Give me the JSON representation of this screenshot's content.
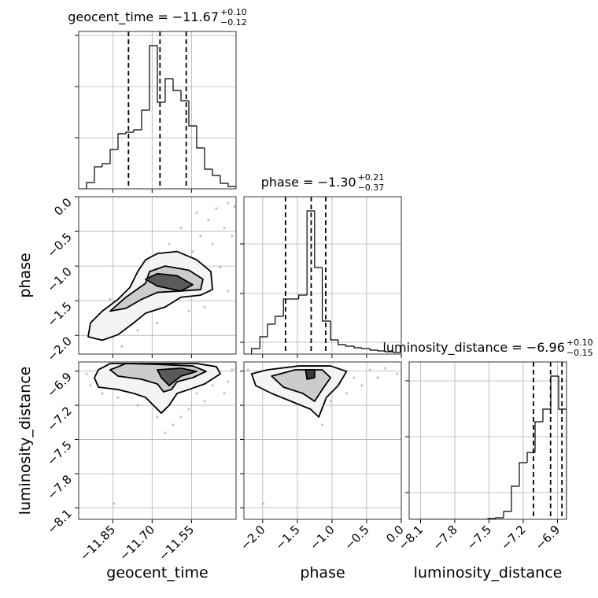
{
  "chart_data": [
    {
      "type": "histogram",
      "title": "geocent_time = −11.67",
      "title_sup": "+0.10",
      "title_sub": "−0.12",
      "bins": [
        -11.98,
        -11.95,
        -11.92,
        -11.89,
        -11.86,
        -11.83,
        -11.8,
        -11.77,
        -11.74,
        -11.71,
        -11.68,
        -11.65,
        -11.62,
        -11.59,
        -11.56,
        -11.53,
        -11.5,
        -11.47,
        -11.44,
        -11.41,
        -11.38
      ],
      "counts": [
        0,
        8,
        28,
        32,
        50,
        70,
        72,
        75,
        100,
        182,
        110,
        140,
        125,
        112,
        80,
        52,
        25,
        17,
        7,
        3
      ],
      "quantiles": [
        -11.79,
        -11.67,
        -11.57
      ],
      "color": "#000000",
      "xlim": [
        -11.98,
        -11.38
      ],
      "ylim": [
        0,
        200
      ],
      "xticks": [
        -11.85,
        -11.7,
        -11.55
      ],
      "yticks": [
        65,
        130,
        195
      ],
      "show_xtick_labels": false,
      "show_ytick_labels": false,
      "grid": true
    },
    {
      "type": "scatter",
      "ylabel": "phase",
      "x": [
        -11.92,
        -11.875,
        -11.83,
        -11.785,
        -11.74,
        -11.695,
        -11.65,
        -11.59,
        -11.545,
        -11.515,
        -11.485,
        -11.455,
        -11.41,
        -11.386,
        -11.425,
        -11.47,
        -11.44,
        -11.41,
        -11.5,
        -11.56,
        -11.68,
        -11.755,
        -11.815,
        -11.59,
        -11.635,
        -11.53,
        -11.86,
        -11.395
      ],
      "y": [
        -1.93,
        -1.82,
        -1.7,
        -1.59,
        -1.42,
        -1.25,
        -1.14,
        -0.96,
        -0.79,
        -0.57,
        -0.34,
        -0.17,
        -0.09,
        -0.14,
        -0.45,
        -0.68,
        -1.02,
        -1.36,
        -1.59,
        -1.65,
        -1.82,
        -1.93,
        -2.16,
        -0.45,
        -0.68,
        -0.23,
        -1.48,
        -0.57
      ],
      "color": "#808080",
      "contours": [
        {
          "fill": "#f4f4f4",
          "x": [
            -11.944,
            -11.935,
            -11.89,
            -11.83,
            -11.785,
            -11.755,
            -11.725,
            -11.68,
            -11.605,
            -11.53,
            -11.476,
            -11.47,
            -11.515,
            -11.59,
            -11.65,
            -11.725,
            -11.77,
            -11.83,
            -11.89
          ],
          "y": [
            -2.02,
            -1.82,
            -1.65,
            -1.48,
            -1.31,
            -1.08,
            -0.91,
            -0.82,
            -0.79,
            -0.91,
            -1.08,
            -1.34,
            -1.42,
            -1.45,
            -1.59,
            -1.68,
            -1.82,
            -1.99,
            -2.07
          ]
        },
        {
          "fill": "#cccccc",
          "x": [
            -11.86,
            -11.8,
            -11.725,
            -11.71,
            -11.65,
            -11.56,
            -11.506,
            -11.515,
            -11.59,
            -11.68,
            -11.74,
            -11.8
          ],
          "y": [
            -1.65,
            -1.45,
            -1.25,
            -1.08,
            -1.0,
            -1.06,
            -1.19,
            -1.34,
            -1.36,
            -1.38,
            -1.48,
            -1.61
          ]
        },
        {
          "fill": "#5a5a5a",
          "x": [
            -11.725,
            -11.68,
            -11.605,
            -11.545,
            -11.59,
            -11.68
          ],
          "y": [
            -1.19,
            -1.11,
            -1.14,
            -1.27,
            -1.36,
            -1.29
          ]
        }
      ],
      "xlim": [
        -11.98,
        -11.38
      ],
      "ylim": [
        -2.27,
        0
      ],
      "xticks": [
        -11.85,
        -11.7,
        -11.55
      ],
      "yticks": [
        {
          "value": 0.0,
          "label": "0.0"
        },
        {
          "value": -0.5,
          "label": "−0.5"
        },
        {
          "value": -1.0,
          "label": "−1.0"
        },
        {
          "value": -1.5,
          "label": "−1.5"
        },
        {
          "value": -2.0,
          "label": "−2.0"
        }
      ],
      "show_xtick_labels": false,
      "show_ytick_labels": true,
      "grid": true
    },
    {
      "type": "histogram",
      "title": "phase = −1.30",
      "title_sup": "+0.21",
      "title_sub": "−0.37",
      "bins": [
        -2.27,
        -2.16,
        -2.04,
        -1.93,
        -1.82,
        -1.7,
        -1.59,
        -1.48,
        -1.36,
        -1.25,
        -1.14,
        -1.02,
        -0.91,
        -0.8,
        -0.68,
        -0.57,
        -0.45,
        -0.34,
        -0.23,
        -0.11,
        0.0
      ],
      "counts": [
        0,
        7,
        22,
        38,
        48,
        70,
        70,
        75,
        182,
        110,
        42,
        18,
        12,
        10,
        8,
        7,
        5,
        4,
        3,
        2
      ],
      "quantiles": [
        -1.67,
        -1.3,
        -1.09
      ],
      "color": "#000000",
      "xlim": [
        -2.27,
        0
      ],
      "ylim": [
        0,
        200
      ],
      "xticks": [
        -2.0,
        -1.5,
        -1.0,
        -0.5,
        0.0
      ],
      "yticks": [
        15,
        77,
        140
      ],
      "show_xtick_labels": false,
      "show_ytick_labels": false,
      "grid": true
    },
    {
      "type": "scatter",
      "xlabel": "geocent_time",
      "ylabel": "luminosity_distance",
      "x": [
        -11.935,
        -11.89,
        -11.83,
        -11.755,
        -11.68,
        -11.62,
        -11.56,
        -11.5,
        -11.425,
        -11.395,
        -11.41,
        -11.74,
        -11.59,
        -11.65,
        -11.8,
        -11.53,
        -11.47,
        -11.845,
        -11.95,
        -11.38
      ],
      "y": [
        -7.027,
        -7.096,
        -7.131,
        -7.2,
        -7.303,
        -7.372,
        -7.234,
        -7.165,
        -7.096,
        -6.889,
        -6.993,
        -6.889,
        -7.303,
        -7.441,
        -7.027,
        -7.096,
        -7.027,
        -8.062,
        -6.924,
        -6.875
      ],
      "color": "#808080",
      "contours": [
        {
          "fill": "#f4f4f4",
          "x": [
            -11.92,
            -11.905,
            -11.86,
            -11.68,
            -11.53,
            -11.455,
            -11.44,
            -11.5,
            -11.56,
            -11.605,
            -11.635,
            -11.665,
            -11.695,
            -11.725,
            -11.77,
            -11.83,
            -11.905
          ],
          "y": [
            -6.958,
            -6.889,
            -6.834,
            -6.834,
            -6.834,
            -6.861,
            -6.924,
            -7.013,
            -7.062,
            -7.096,
            -7.2,
            -7.269,
            -7.2,
            -7.131,
            -7.096,
            -7.062,
            -7.041
          ]
        },
        {
          "fill": "#cccccc",
          "x": [
            -11.86,
            -11.8,
            -11.68,
            -11.545,
            -11.494,
            -11.545,
            -11.605,
            -11.626,
            -11.656,
            -11.68,
            -11.74,
            -11.83
          ],
          "y": [
            -6.889,
            -6.834,
            -6.841,
            -6.855,
            -6.903,
            -6.958,
            -6.993,
            -7.062,
            -7.082,
            -7.013,
            -6.972,
            -6.944
          ]
        },
        {
          "fill": "#5a5a5a",
          "x": [
            -11.68,
            -11.59,
            -11.53,
            -11.59,
            -11.635,
            -11.665
          ],
          "y": [
            -6.889,
            -6.875,
            -6.903,
            -6.944,
            -7.027,
            -6.958
          ]
        }
      ],
      "xlim": [
        -11.98,
        -11.38
      ],
      "ylim": [
        -8.2,
        -6.82
      ],
      "xticks": [
        {
          "value": -11.85,
          "label": "−11.85"
        },
        {
          "value": -11.7,
          "label": "−11.70"
        },
        {
          "value": -11.55,
          "label": "−11.55"
        }
      ],
      "yticks": [
        {
          "value": -6.9,
          "label": "−6.9"
        },
        {
          "value": -7.2,
          "label": "−7.2"
        },
        {
          "value": -7.5,
          "label": "−7.5"
        },
        {
          "value": -7.8,
          "label": "−7.8"
        },
        {
          "value": -8.1,
          "label": "−8.1"
        }
      ],
      "show_xtick_labels": true,
      "show_ytick_labels": true,
      "grid": true
    },
    {
      "type": "scatter",
      "xlabel": "phase",
      "x": [
        -2.21,
        -2.04,
        -1.76,
        -1.48,
        -1.25,
        -1.14,
        -1.02,
        -0.68,
        -0.45,
        -0.23,
        -0.06,
        -0.57,
        -0.79,
        -1.65,
        -1.99,
        -1.31,
        -0.34,
        -0.91
      ],
      "y": [
        -6.889,
        -6.958,
        -7.062,
        -7.096,
        -7.234,
        -7.372,
        -7.165,
        -6.958,
        -6.889,
        -6.875,
        -6.924,
        -7.027,
        -7.096,
        -6.993,
        -8.062,
        -6.924,
        -6.958,
        -6.889
      ],
      "color": "#808080",
      "contours": [
        {
          "fill": "#f4f4f4",
          "x": [
            -2.16,
            -1.93,
            -1.48,
            -1.02,
            -0.79,
            -0.91,
            -1.08,
            -1.19,
            -1.31,
            -1.59,
            -1.87,
            -2.1
          ],
          "y": [
            -6.924,
            -6.889,
            -6.855,
            -6.855,
            -6.903,
            -7.027,
            -7.131,
            -7.303,
            -7.234,
            -7.165,
            -7.096,
            -7.027
          ]
        },
        {
          "fill": "#cccccc",
          "x": [
            -1.87,
            -1.53,
            -1.14,
            -1.02,
            -1.14,
            -1.25,
            -1.42,
            -1.7
          ],
          "y": [
            -6.944,
            -6.889,
            -6.889,
            -6.958,
            -7.062,
            -7.165,
            -7.096,
            -7.041
          ]
        },
        {
          "fill": "#3a3a3a",
          "x": [
            -1.38,
            -1.25,
            -1.25,
            -1.36
          ],
          "y": [
            -6.889,
            -6.889,
            -6.958,
            -6.972
          ]
        }
      ],
      "xlim": [
        -2.27,
        0
      ],
      "ylim": [
        -8.2,
        -6.82
      ],
      "xticks": [
        {
          "value": -2.0,
          "label": "−2.0"
        },
        {
          "value": -1.5,
          "label": "−1.5"
        },
        {
          "value": -1.0,
          "label": "−1.0"
        },
        {
          "value": -0.5,
          "label": "−0.5"
        },
        {
          "value": 0.0,
          "label": "0.0"
        }
      ],
      "yticks": [
        -6.9,
        -7.2,
        -7.5,
        -7.8,
        -8.1
      ],
      "show_xtick_labels": true,
      "show_ytick_labels": false,
      "grid": true
    },
    {
      "type": "histogram",
      "title": "luminosity_distance = −6.96",
      "title_sup": "+0.10",
      "title_sub": "−0.15",
      "xlabel": "luminosity_distance",
      "bins": [
        -8.2,
        -8.131,
        -8.062,
        -7.993,
        -7.924,
        -7.855,
        -7.786,
        -7.717,
        -7.648,
        -7.579,
        -7.51,
        -7.441,
        -7.372,
        -7.303,
        -7.234,
        -7.165,
        -7.096,
        -7.027,
        -6.958,
        -6.889,
        -6.82
      ],
      "counts": [
        0,
        0,
        0,
        0,
        0,
        0,
        0,
        0,
        0,
        0,
        1,
        2,
        10,
        42,
        72,
        85,
        124,
        140,
        182,
        140
      ],
      "quantiles": [
        -7.11,
        -6.96,
        -6.86
      ],
      "color": "#000000",
      "xlim": [
        -8.2,
        -6.82
      ],
      "ylim": [
        0,
        200
      ],
      "xticks": [
        {
          "value": -8.1,
          "label": "−8.1"
        },
        {
          "value": -7.8,
          "label": "−7.8"
        },
        {
          "value": -7.5,
          "label": "−7.5"
        },
        {
          "value": -7.2,
          "label": "−7.2"
        },
        {
          "value": -6.9,
          "label": "−6.9"
        }
      ],
      "yticks": [
        34,
        105,
        176
      ],
      "show_xtick_labels": true,
      "show_ytick_labels": false,
      "grid": true
    }
  ]
}
